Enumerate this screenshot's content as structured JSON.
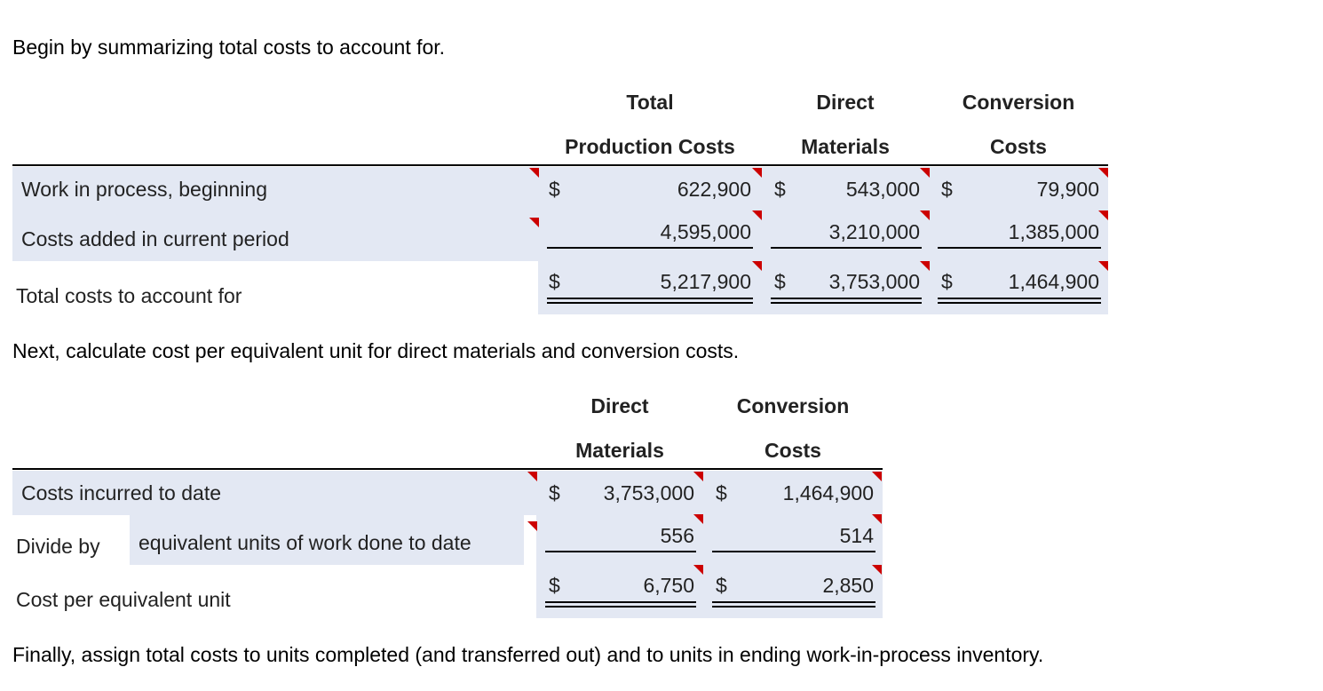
{
  "intro": "Begin by summarizing total costs to account for.",
  "table1": {
    "headers": {
      "total_line1": "Total",
      "total_line2": "Production Costs",
      "dm_line1": "Direct",
      "dm_line2": "Materials",
      "cc_line1": "Conversion",
      "cc_line2": "Costs"
    },
    "currency": "$",
    "rows": [
      {
        "label": "Work in process, beginning",
        "total": "622,900",
        "dm": "543,000",
        "cc": "79,900"
      },
      {
        "label": "Costs added in current period",
        "total": "4,595,000",
        "dm": "3,210,000",
        "cc": "1,385,000"
      }
    ],
    "total_row": {
      "label": "Total costs to account for",
      "total": "5,217,900",
      "dm": "3,753,000",
      "cc": "1,464,900"
    }
  },
  "next_text": "Next, calculate cost per equivalent unit for direct materials and conversion costs.",
  "table2": {
    "headers": {
      "dm_line1": "Direct",
      "dm_line2": "Materials",
      "cc_line1": "Conversion",
      "cc_line2": "Costs"
    },
    "currency": "$",
    "row_incurred": {
      "label": "Costs incurred to date",
      "dm": "3,753,000",
      "cc": "1,464,900"
    },
    "row_divide": {
      "prefix": "Divide by",
      "label": "equivalent units of work done to date",
      "dm": "556",
      "cc": "514"
    },
    "row_cost": {
      "label": "Cost per equivalent unit",
      "dm": "6,750",
      "cc": "2,850"
    }
  },
  "final_text": "Finally, assign total costs to units completed (and transferred out) and to units in ending work-in-process inventory."
}
